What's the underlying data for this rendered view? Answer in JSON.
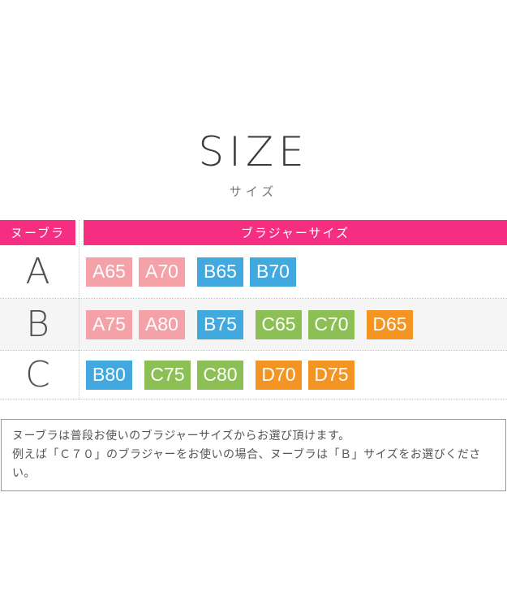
{
  "title": "SIZE",
  "subtitle": "サイズ",
  "palette": {
    "magenta": "#F52E82",
    "pink": "#F5A1A8",
    "blue": "#42A9E0",
    "green": "#8CC055",
    "orange": "#F49423"
  },
  "table": {
    "header_left": "ヌーブラ",
    "header_right": "ブラジャーサイズ",
    "rows": [
      {
        "label": "A",
        "chips": [
          {
            "text": "A65",
            "color": "#F5A1A8"
          },
          {
            "text": "A70",
            "color": "#F5A1A8"
          },
          {
            "text": "B65",
            "color": "#42A9E0",
            "new_group": true
          },
          {
            "text": "B70",
            "color": "#42A9E0"
          }
        ]
      },
      {
        "label": "B",
        "chips": [
          {
            "text": "A75",
            "color": "#F5A1A8"
          },
          {
            "text": "A80",
            "color": "#F5A1A8"
          },
          {
            "text": "B75",
            "color": "#42A9E0",
            "new_group": true
          },
          {
            "text": "C65",
            "color": "#8CC055",
            "new_group": true
          },
          {
            "text": "C70",
            "color": "#8CC055"
          },
          {
            "text": "D65",
            "color": "#F49423",
            "new_group": true
          }
        ]
      },
      {
        "label": "C",
        "chips": [
          {
            "text": "B80",
            "color": "#42A9E0"
          },
          {
            "text": "C75",
            "color": "#8CC055",
            "new_group": true
          },
          {
            "text": "C80",
            "color": "#8CC055"
          },
          {
            "text": "D70",
            "color": "#F49423",
            "new_group": true
          },
          {
            "text": "D75",
            "color": "#F49423"
          }
        ]
      }
    ]
  },
  "note": {
    "line1": "ヌーブラは普段お使いのブラジャーサイズからお選び頂けます。",
    "line2": "例えば「Ｃ７０」のブラジャーをお使いの場合、ヌーブラは「Ｂ」サイズをお選びください。"
  }
}
